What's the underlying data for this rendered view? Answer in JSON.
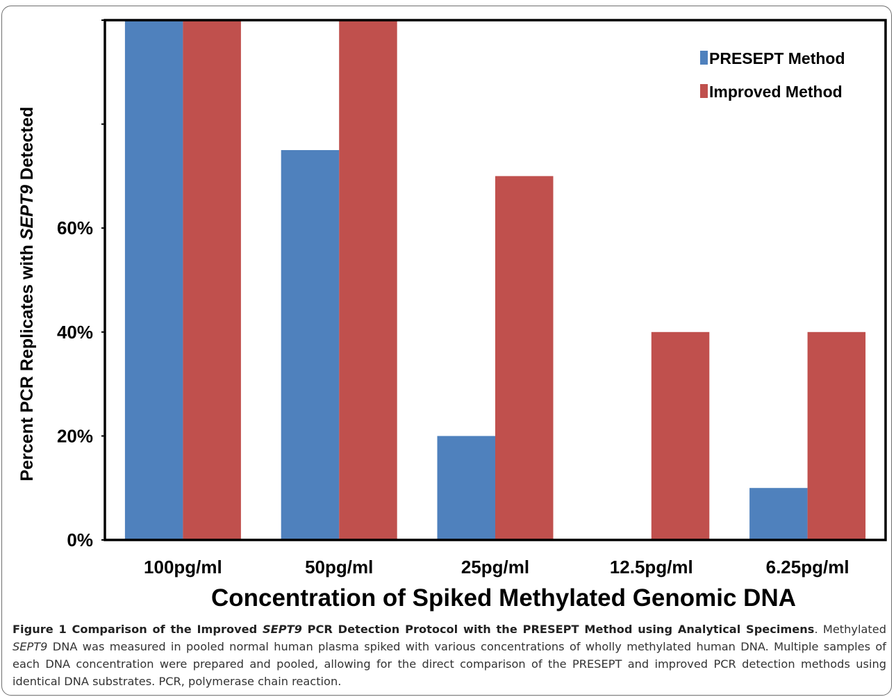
{
  "chart_data": {
    "type": "bar",
    "categories": [
      "100pg/ml",
      "50pg/ml",
      "25pg/ml",
      "12.5pg/ml",
      "6.25pg/ml"
    ],
    "series": [
      {
        "name": "PRESEPT Method",
        "color": "#4f81bd",
        "values": [
          100,
          75,
          20,
          0,
          10
        ]
      },
      {
        "name": "Improved Method",
        "color": "#c0504d",
        "values": [
          100,
          100,
          70,
          40,
          40
        ]
      }
    ],
    "ylim": [
      0,
      100
    ],
    "yticks": [
      0,
      20,
      40,
      60,
      80,
      100
    ],
    "ytick_labels": [
      "0%",
      "20%",
      "40%",
      "60%",
      "",
      ""
    ],
    "ylabel_parts": [
      "Percent  PCR  Replicates  with ",
      "SEPT9",
      " Detected"
    ],
    "xlabel": "Concentration of Spiked Methylated Genomic DNA",
    "legend_position": "top-right",
    "grid": false
  },
  "caption": {
    "heading_parts": [
      "Figure 1 Comparison of the Improved ",
      "SEPT9",
      " PCR Detection Protocol with the PRESEPT Method using Analytical Specimens"
    ],
    "body_parts": [
      ". Methylated ",
      "SEPT9",
      " DNA was measured in pooled normal human plasma spiked with various concentrations of wholly methylated human DNA. Multiple samples of each DNA concentration were prepared and pooled, allowing for the direct comparison of the PRESEPT and improved PCR detection methods using identical DNA substrates. PCR, polymerase chain reaction."
    ]
  }
}
